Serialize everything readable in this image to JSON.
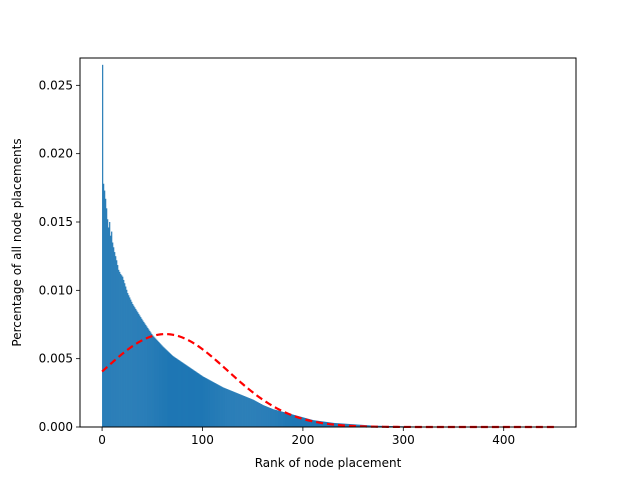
{
  "chart_data": {
    "type": "bar",
    "title": "",
    "xlabel": "Rank of node placement",
    "ylabel": "Percentage of all node placements",
    "xlim": [
      -22,
      472
    ],
    "ylim": [
      0,
      0.027
    ],
    "x_ticks": [
      0,
      100,
      200,
      300,
      400
    ],
    "x_tick_labels": [
      "0",
      "100",
      "200",
      "300",
      "400"
    ],
    "y_ticks": [
      0,
      0.005,
      0.01,
      0.015,
      0.02,
      0.025
    ],
    "y_tick_labels": [
      "0.000",
      "0.005",
      "0.010",
      "0.015",
      "0.020",
      "0.025"
    ],
    "grid": false,
    "histogram": {
      "bin_width": 1,
      "color": "#1f77b4",
      "x": [
        0,
        1,
        2,
        3,
        4,
        5,
        6,
        7,
        8,
        9,
        10,
        12,
        14,
        16,
        18,
        20,
        25,
        30,
        40,
        50,
        60,
        70,
        80,
        90,
        100,
        110,
        120,
        130,
        140,
        150,
        160,
        170,
        180,
        190,
        200,
        210,
        220,
        230,
        240,
        250,
        260,
        270,
        280,
        300,
        320,
        340,
        360
      ],
      "values": [
        0.0265,
        0.0178,
        0.0173,
        0.0167,
        0.016,
        0.0152,
        0.0146,
        0.015,
        0.014,
        0.0143,
        0.0135,
        0.0128,
        0.0122,
        0.0115,
        0.0112,
        0.011,
        0.0098,
        0.009,
        0.0078,
        0.0067,
        0.0059,
        0.0052,
        0.0047,
        0.0042,
        0.0037,
        0.0033,
        0.0029,
        0.0026,
        0.0023,
        0.002,
        0.0016,
        0.0013,
        0.0011,
        0.0009,
        0.0007,
        0.0005,
        0.0004,
        0.0003,
        0.00025,
        0.0002,
        0.00015,
        0.0001,
        8e-05,
        5e-05,
        3e-05,
        2e-05,
        1e-05
      ]
    },
    "fit_curve": {
      "type": "gaussian",
      "style": "dashed",
      "color": "#ff0000",
      "peak_x": 63,
      "peak_y": 0.0068,
      "sigma": 62,
      "x_range": [
        0,
        450
      ]
    }
  }
}
